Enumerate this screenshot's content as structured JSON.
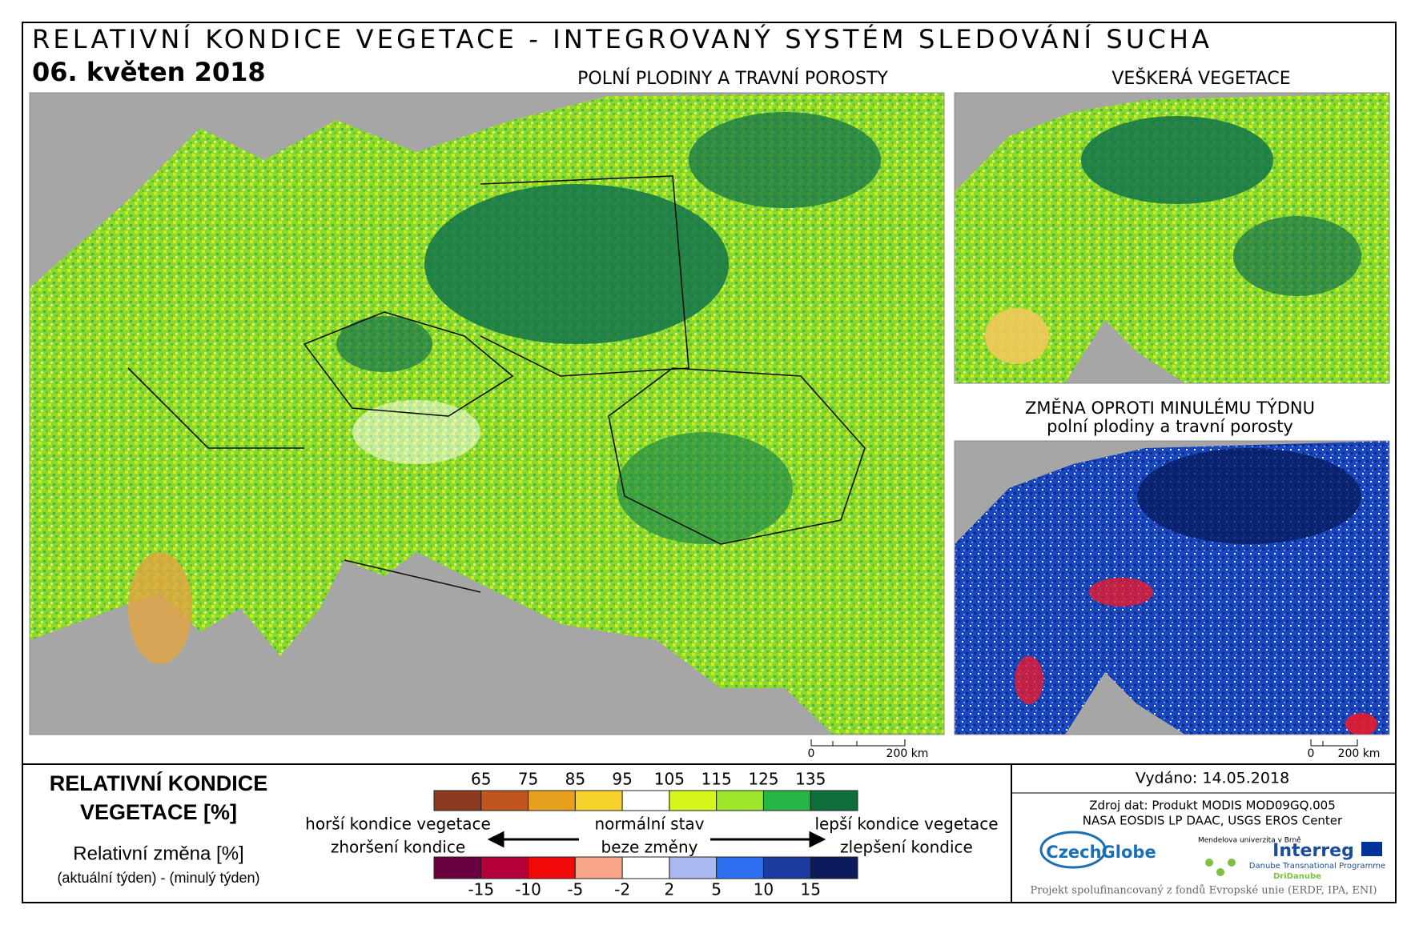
{
  "header": {
    "title": "RELATIVNÍ KONDICE VEGETACE - INTEGROVANÝ SYSTÉM SLEDOVÁNÍ SUCHA",
    "date": "06. květen 2018"
  },
  "maps": [
    {
      "title": "POLNÍ PLODINY A TRAVNÍ POROSTY"
    },
    {
      "title": "VEŠKERÁ VEGETACE"
    },
    {
      "title": "ZMĚNA OPROTI MINULÉMU TÝDNU",
      "subtitle": "polní plodiny a travní porosty"
    }
  ],
  "scalebar": {
    "start": "0",
    "end": "200 km"
  },
  "legend": {
    "title": [
      "RELATIVNÍ KONDICE",
      "VEGETACE [%]"
    ],
    "change_title": "Relativní změna [%]",
    "change_note": "(aktuální týden) - (minulý týden)",
    "condition_ticks": [
      65,
      75,
      85,
      95,
      105,
      115,
      125,
      135
    ],
    "condition_colors": [
      "#8b3a1f",
      "#c0561e",
      "#e6a01e",
      "#f5d22a",
      "#ffffff",
      "#d7f51a",
      "#9be52a",
      "#27b548",
      "#0f6e3b"
    ],
    "change_ticks": [
      -15,
      -10,
      -5,
      -2,
      2,
      5,
      10,
      15
    ],
    "change_colors": [
      "#6b0040",
      "#b5003a",
      "#f00a0a",
      "#f8a58a",
      "#ffffff",
      "#a9b8f0",
      "#2e6ff0",
      "#1a3a9e",
      "#0a1a5a"
    ],
    "worse": "horší kondice vegetace",
    "normal": "normální stav",
    "better": "lepší kondice vegetace",
    "worsening": "zhoršení kondice",
    "no_change": "beze změny",
    "improving": "zlepšení kondice"
  },
  "info": {
    "issued": "Vydáno: 14.05.2018",
    "source": [
      "Zdroj dat: Produkt MODIS MOD09GQ.005",
      "NASA EOSDIS LP DAAC, USGS EROS Center"
    ],
    "logos": [
      "CzechGlobe",
      "Mendelova univerzita v Brně",
      "Interreg",
      "Danube Transnational Programme",
      "DriDanube"
    ],
    "footer": "Projekt spolufinancovaný z fondů Evropské unie (ERDF, IPA, ENI)"
  }
}
